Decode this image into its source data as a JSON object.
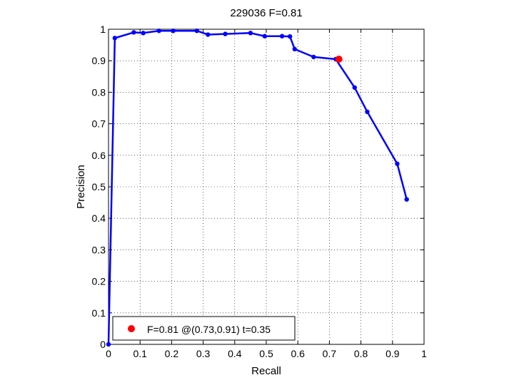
{
  "chart_data": {
    "type": "line",
    "title": "229036 F=0.81",
    "xlabel": "Recall",
    "ylabel": "Precision",
    "xlim": [
      0,
      1
    ],
    "ylim": [
      0,
      1
    ],
    "grid": true,
    "xticks": [
      "0",
      "0.1",
      "0.2",
      "0.3",
      "0.4",
      "0.5",
      "0.6",
      "0.7",
      "0.8",
      "0.9",
      "1"
    ],
    "yticks": [
      "0",
      "0.1",
      "0.2",
      "0.3",
      "0.4",
      "0.5",
      "0.6",
      "0.7",
      "0.8",
      "0.9",
      "1"
    ],
    "series": [
      {
        "color": "#0000ff",
        "x": [
          0.0,
          0.02,
          0.08,
          0.11,
          0.16,
          0.205,
          0.28,
          0.315,
          0.37,
          0.45,
          0.495,
          0.55,
          0.575,
          0.59,
          0.65,
          0.72,
          0.78,
          0.82,
          0.915,
          0.945
        ],
        "y": [
          0.0,
          0.972,
          0.99,
          0.988,
          0.995,
          0.995,
          0.995,
          0.983,
          0.985,
          0.988,
          0.978,
          0.978,
          0.977,
          0.937,
          0.912,
          0.905,
          0.815,
          0.738,
          0.573,
          0.46
        ]
      }
    ],
    "highlight": {
      "x": 0.73,
      "y": 0.905,
      "color": "#ff0000"
    },
    "legend": {
      "position": "bottom-left",
      "entries": [
        {
          "label": "F=0.81 @(0.73,0.91) t=0.35",
          "color": "#ff0000"
        }
      ]
    }
  }
}
